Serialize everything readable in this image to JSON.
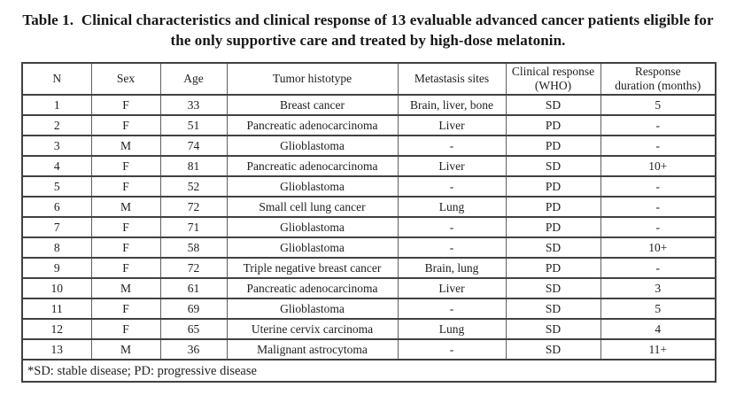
{
  "title": {
    "line1": "Table 1.  Clinical characteristics and clinical response of 13 evaluable advanced cancer patients eligible for",
    "line2": "the only supportive care and treated by high-dose melatonin."
  },
  "table": {
    "columns": [
      {
        "line1": "N",
        "line2": ""
      },
      {
        "line1": "Sex",
        "line2": ""
      },
      {
        "line1": "Age",
        "line2": ""
      },
      {
        "line1": "Tumor histotype",
        "line2": ""
      },
      {
        "line1": "Metastasis sites",
        "line2": ""
      },
      {
        "line1": "Clinical response",
        "line2": "(WHO)"
      },
      {
        "line1": "Response",
        "line2": "duration (months)"
      }
    ],
    "rows": [
      [
        "1",
        "F",
        "33",
        "Breast cancer",
        "Brain, liver, bone",
        "SD",
        "5"
      ],
      [
        "2",
        "F",
        "51",
        "Pancreatic adenocarcinoma",
        "Liver",
        "PD",
        "-"
      ],
      [
        "3",
        "M",
        "74",
        "Glioblastoma",
        "-",
        "PD",
        "-"
      ],
      [
        "4",
        "F",
        "81",
        "Pancreatic adenocarcinoma",
        "Liver",
        "SD",
        "10+"
      ],
      [
        "5",
        "F",
        "52",
        "Glioblastoma",
        "-",
        "PD",
        "-"
      ],
      [
        "6",
        "M",
        "72",
        "Small cell lung cancer",
        "Lung",
        "PD",
        "-"
      ],
      [
        "7",
        "F",
        "71",
        "Glioblastoma",
        "-",
        "PD",
        "-"
      ],
      [
        "8",
        "F",
        "58",
        "Glioblastoma",
        "-",
        "SD",
        "10+"
      ],
      [
        "9",
        "F",
        "72",
        "Triple negative breast cancer",
        "Brain, lung",
        "PD",
        "-"
      ],
      [
        "10",
        "M",
        "61",
        "Pancreatic adenocarcinoma",
        "Liver",
        "SD",
        "3"
      ],
      [
        "11",
        "F",
        "69",
        "Glioblastoma",
        "-",
        "SD",
        "5"
      ],
      [
        "12",
        "F",
        "65",
        "Uterine cervix carcinoma",
        "Lung",
        "SD",
        "4"
      ],
      [
        "13",
        "M",
        "36",
        "Malignant astrocytoma",
        "-",
        "SD",
        "11+"
      ]
    ],
    "footnote": "*SD: stable disease; PD: progressive disease"
  }
}
